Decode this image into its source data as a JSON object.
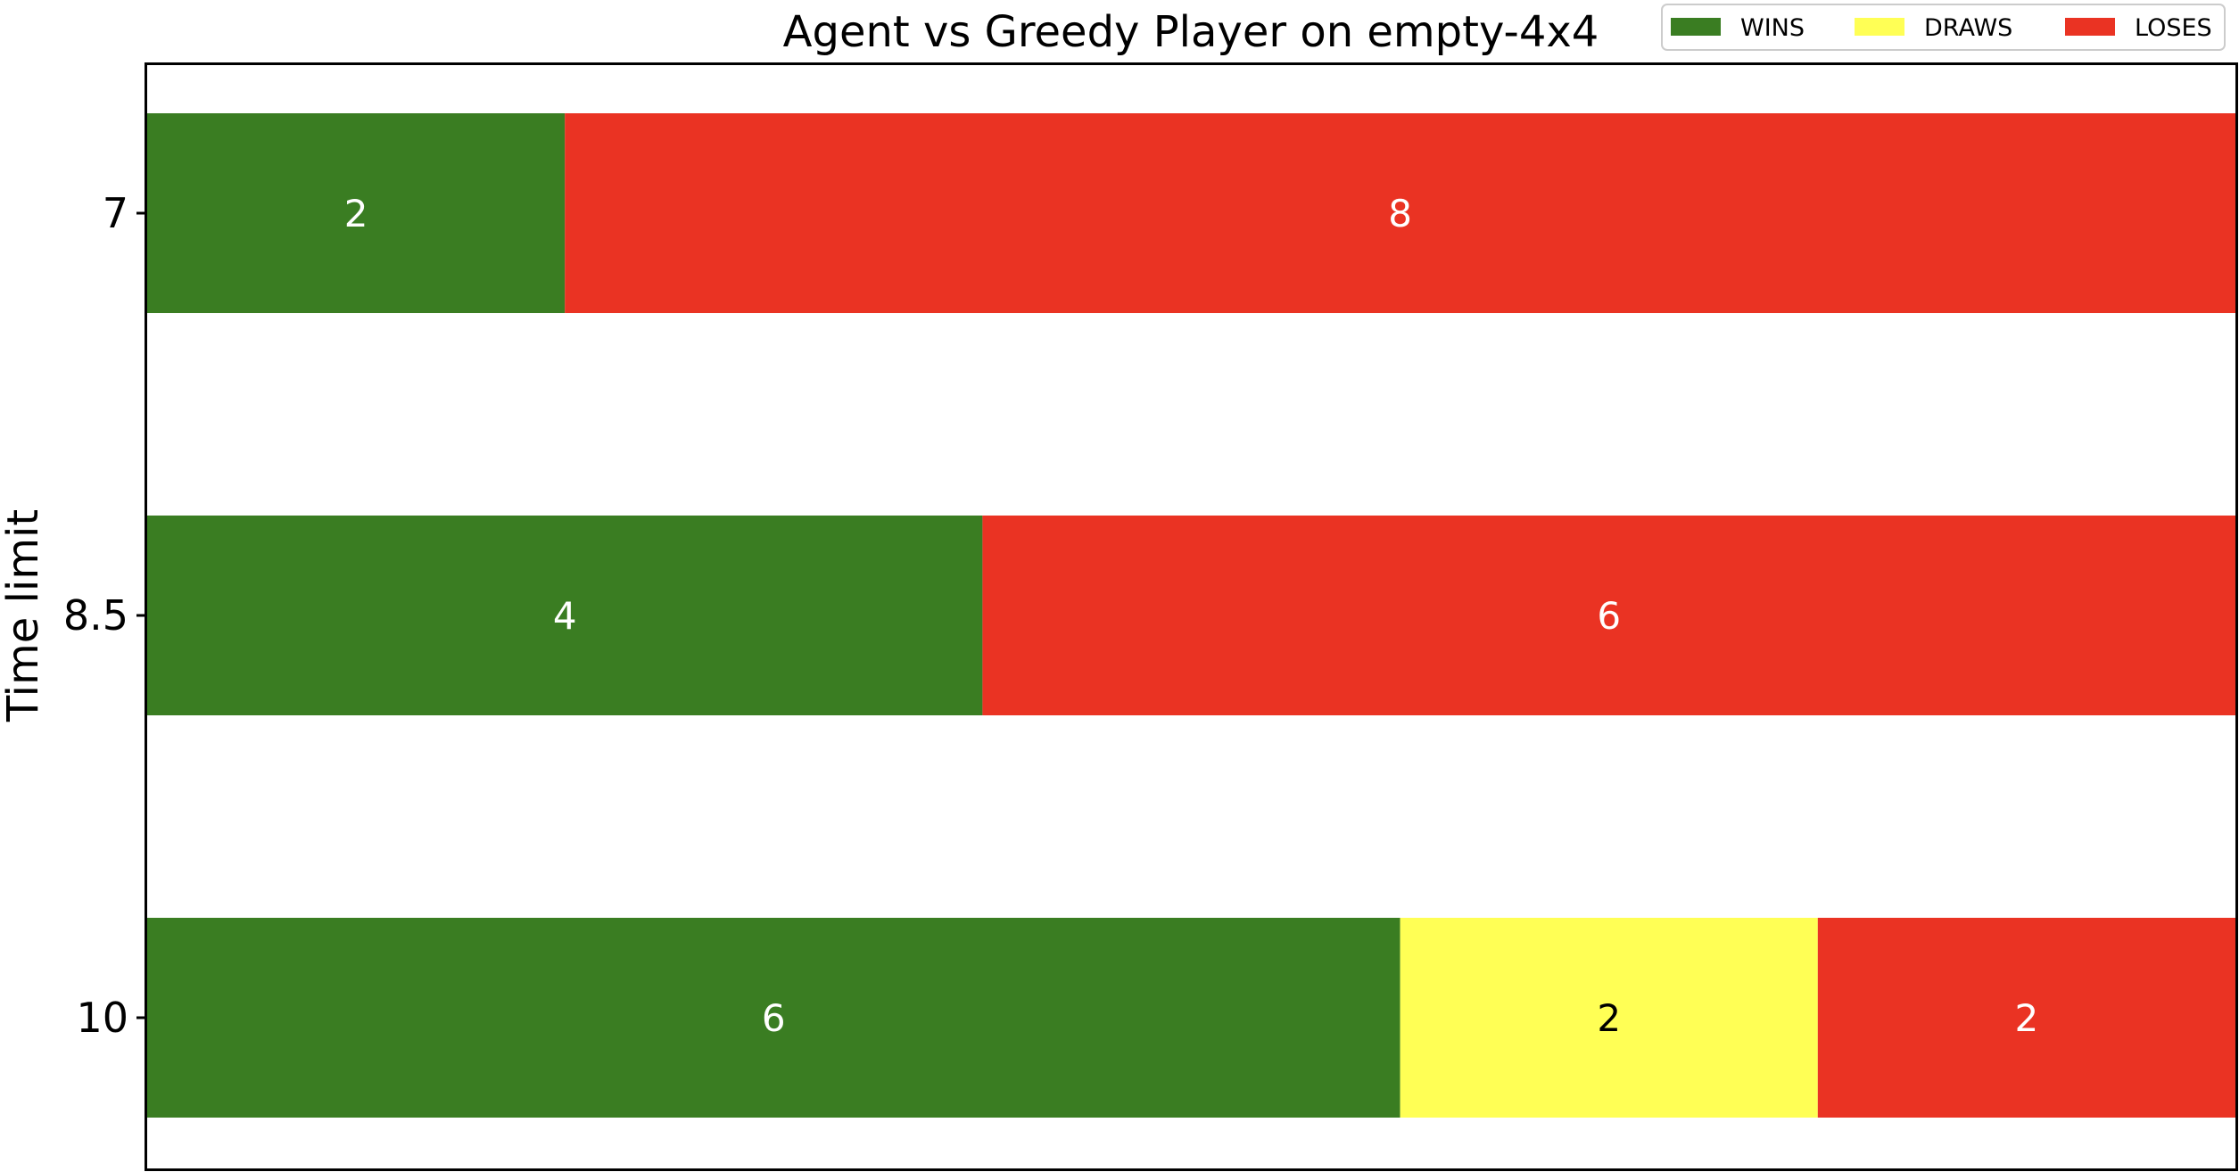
{
  "chart_data": {
    "type": "bar",
    "orientation": "horizontal",
    "stacked": true,
    "title": "Agent vs Greedy Player on empty-4x4",
    "xlabel": "",
    "ylabel": "Time limit",
    "categories": [
      "7",
      "8.5",
      "10"
    ],
    "series": [
      {
        "name": "WINS",
        "color": "#3a7d22",
        "label_color": "#ffffff",
        "values": [
          2,
          4,
          6
        ]
      },
      {
        "name": "DRAWS",
        "color": "#ffff55",
        "label_color": "#000000",
        "values": [
          0,
          0,
          2
        ]
      },
      {
        "name": "LOSES",
        "color": "#ea3323",
        "label_color": "#ffffff",
        "values": [
          8,
          6,
          2
        ]
      }
    ],
    "xlim": [
      0,
      10
    ],
    "grid": false,
    "legend_position": "top-right"
  }
}
